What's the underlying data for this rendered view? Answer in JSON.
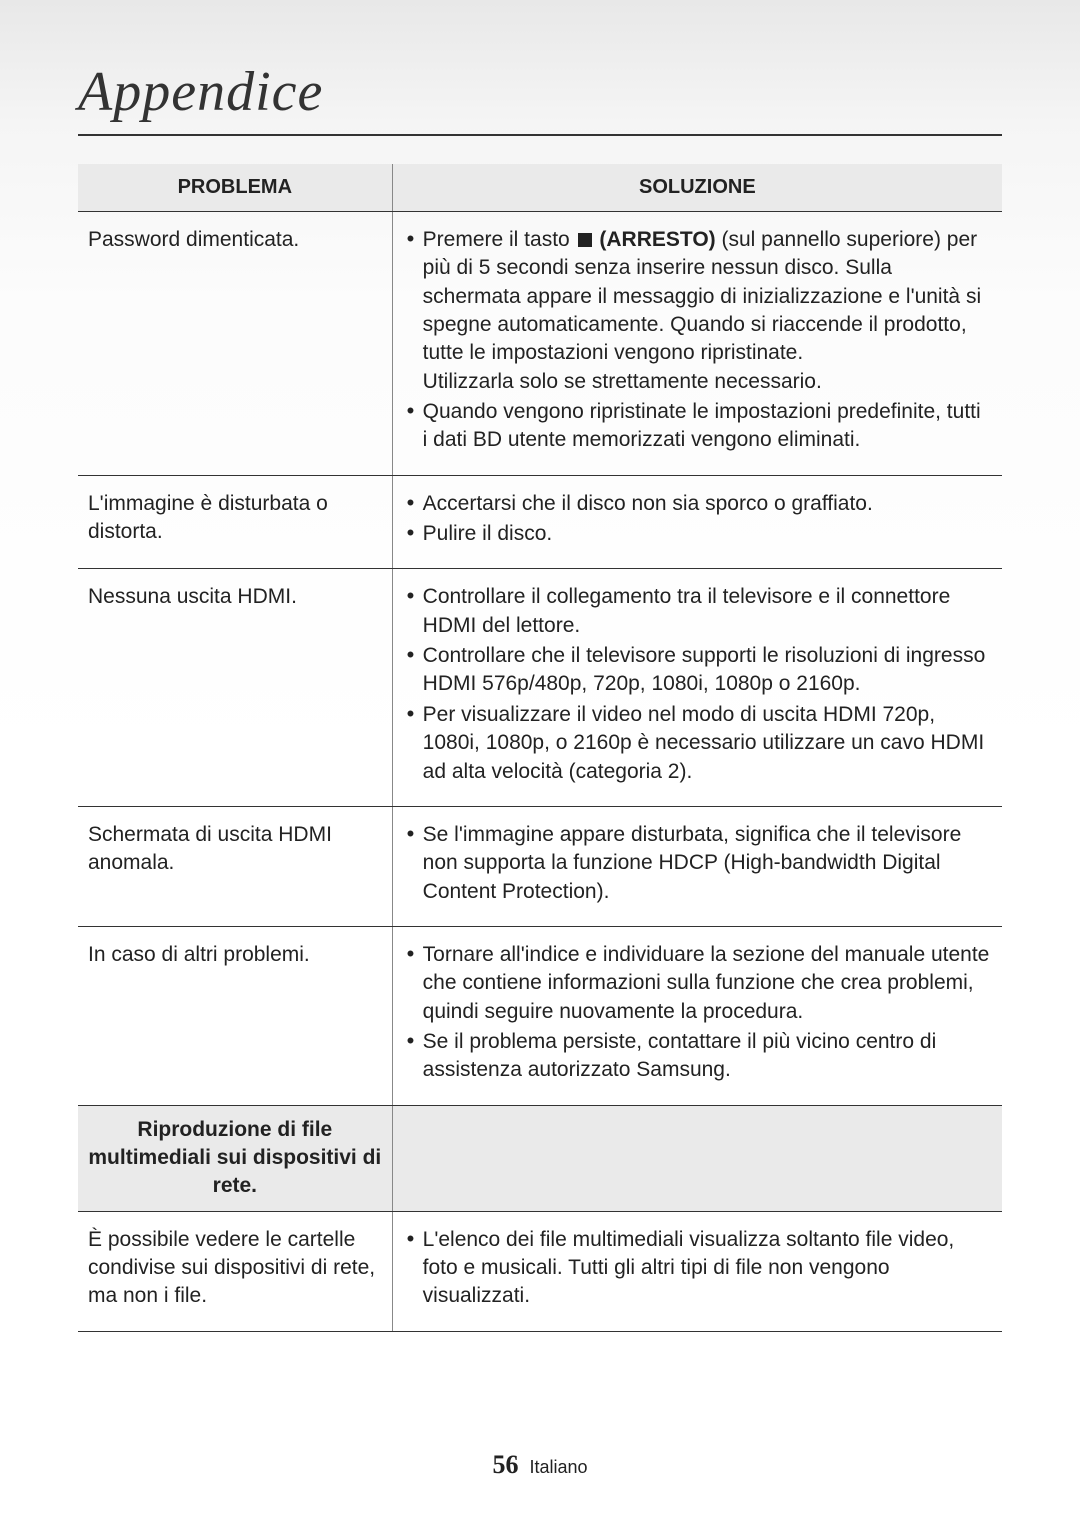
{
  "title": "Appendice",
  "table": {
    "header": {
      "problem": "PROBLEMA",
      "solution": "SOLUZIONE"
    },
    "rows": [
      {
        "problem": "Password dimenticata.",
        "solution_items": [
          {
            "pre": "Premere il tasto ",
            "stop": true,
            "bold": " (ARRESTO)",
            "post": " (sul pannello superiore) per più di 5 secondi senza inserire nessun disco. Sulla schermata appare il messaggio di inizializzazione e l'unità si spegne automaticamente. Quando si riaccende il prodotto, tutte le impostazioni vengono ripristinate.",
            "tail": "Utilizzarla solo se strettamente necessario."
          },
          {
            "text": "Quando vengono ripristinate le impostazioni predefinite, tutti i dati BD utente memorizzati vengono eliminati."
          }
        ]
      },
      {
        "problem": "L'immagine è disturbata o distorta.",
        "solution_items": [
          {
            "text": "Accertarsi che il disco non sia sporco o graffiato."
          },
          {
            "text": "Pulire il disco."
          }
        ]
      },
      {
        "problem": "Nessuna uscita HDMI.",
        "solution_items": [
          {
            "text": "Controllare il collegamento tra il televisore e il connettore HDMI del lettore."
          },
          {
            "text": "Controllare che il televisore supporti le risoluzioni di ingresso HDMI 576p/480p, 720p, 1080i, 1080p o 2160p."
          },
          {
            "text": "Per visualizzare il video nel modo di uscita HDMI 720p, 1080i, 1080p, o 2160p è necessario utilizzare un cavo HDMI ad alta velocità (categoria 2)."
          }
        ]
      },
      {
        "problem": "Schermata di uscita HDMI anomala.",
        "solution_items": [
          {
            "text": "Se l'immagine appare disturbata, significa che il televisore non supporta la funzione HDCP (High-bandwidth Digital Content Protection)."
          }
        ]
      },
      {
        "problem": "In caso di altri problemi.",
        "solution_items": [
          {
            "text": "Tornare all'indice e individuare la sezione del manuale utente che contiene informazioni sulla funzione che crea problemi, quindi seguire nuovamente la procedura."
          },
          {
            "text": "Se il problema persiste, contattare il più vicino centro di assistenza autorizzato Samsung."
          }
        ]
      }
    ],
    "section": {
      "label": "Riproduzione di file multimediali sui dispositivi di rete."
    },
    "section_rows": [
      {
        "problem": "È possibile vedere le cartelle condivise sui dispositivi di rete, ma non i file.",
        "solution_items": [
          {
            "text": "L'elenco dei file multimediali visualizza soltanto file video, foto e musicali. Tutti gli altri tipi di file non vengono visualizzati."
          }
        ]
      }
    ]
  },
  "footer": {
    "page": "56",
    "lang": "Italiano"
  }
}
